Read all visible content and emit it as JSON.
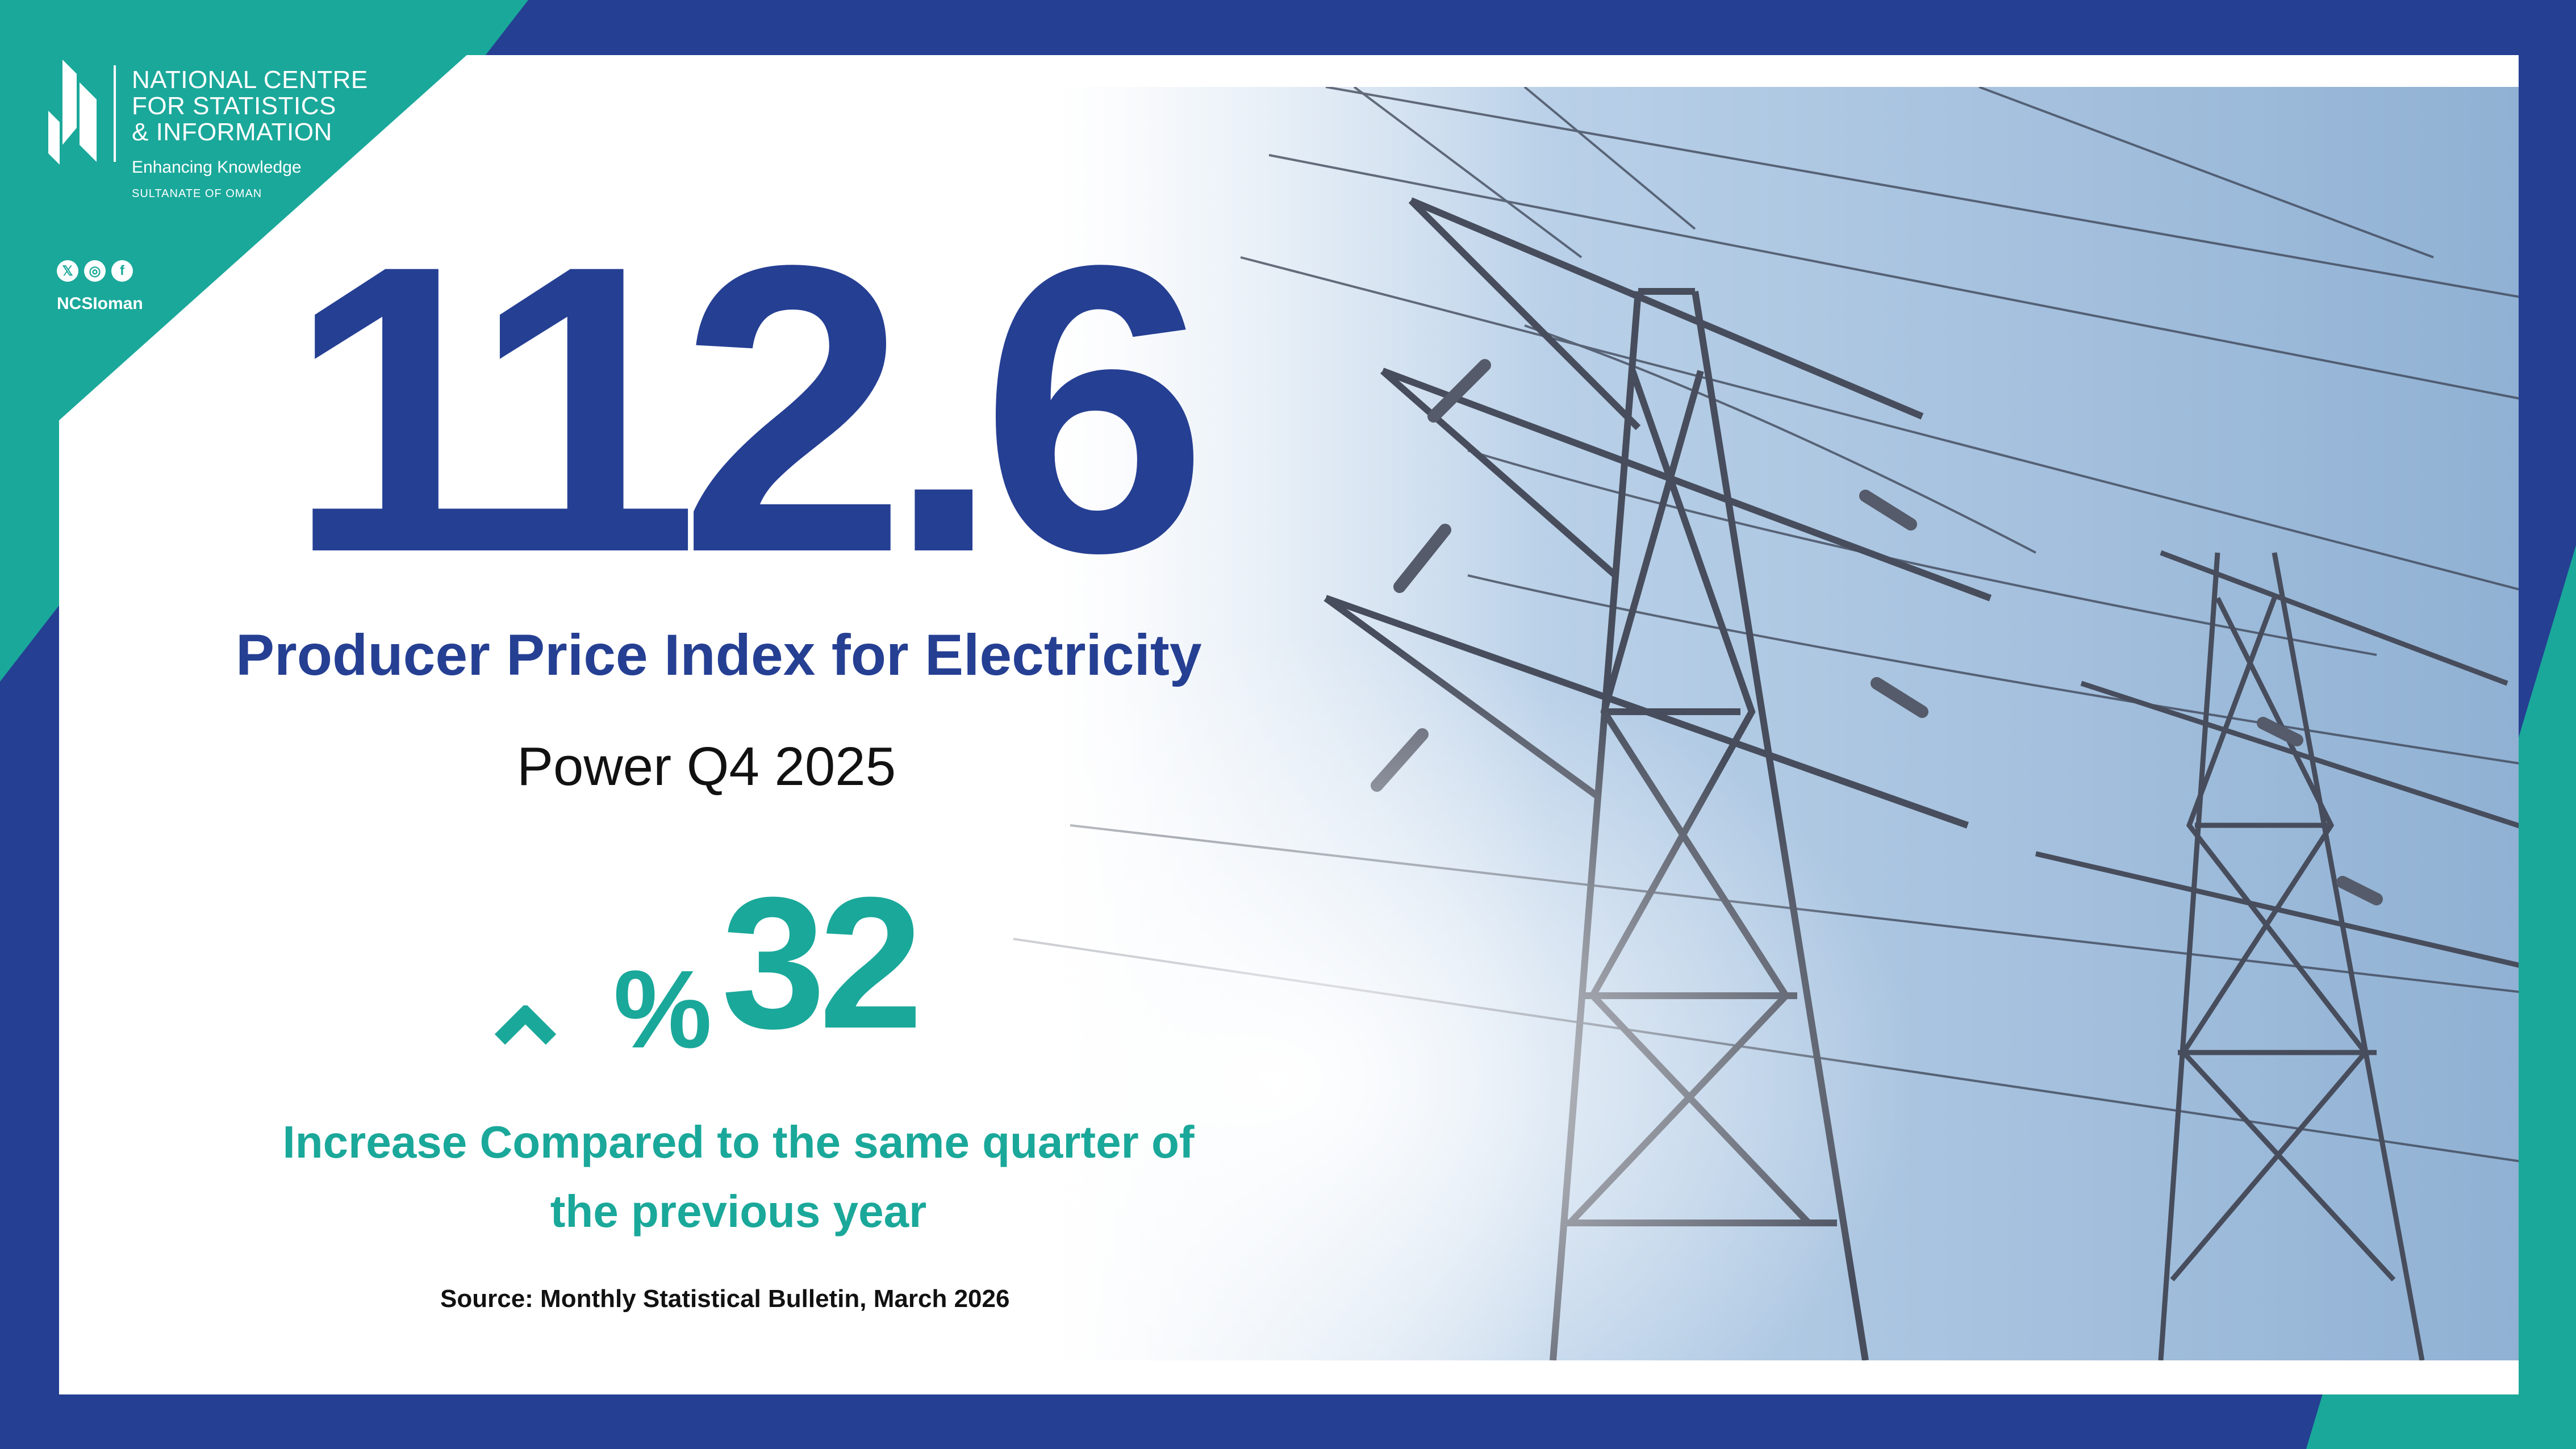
{
  "colors": {
    "navy": "#253F93",
    "teal": "#1AA89A",
    "white": "#FFFFFF",
    "text": "#111111"
  },
  "organization": {
    "name_lines": [
      "NATIONAL CENTRE",
      "FOR STATISTICS",
      "& INFORMATION"
    ],
    "tagline": "Enhancing Knowledge",
    "country": "SULTANATE OF OMAN",
    "social_icons": [
      "x-icon",
      "instagram-icon",
      "facebook-icon"
    ],
    "handle": "NCSIoman"
  },
  "headline": {
    "value": "112.6",
    "title": "Producer Price Index for Electricity",
    "subtitle": "Power Q4 2025"
  },
  "change": {
    "direction": "up-icon",
    "percent_sign": "%",
    "value": "32",
    "description": "Increase Compared to the same quarter of the previous year"
  },
  "source": "Source: Monthly Statistical Bulletin, March 2026"
}
